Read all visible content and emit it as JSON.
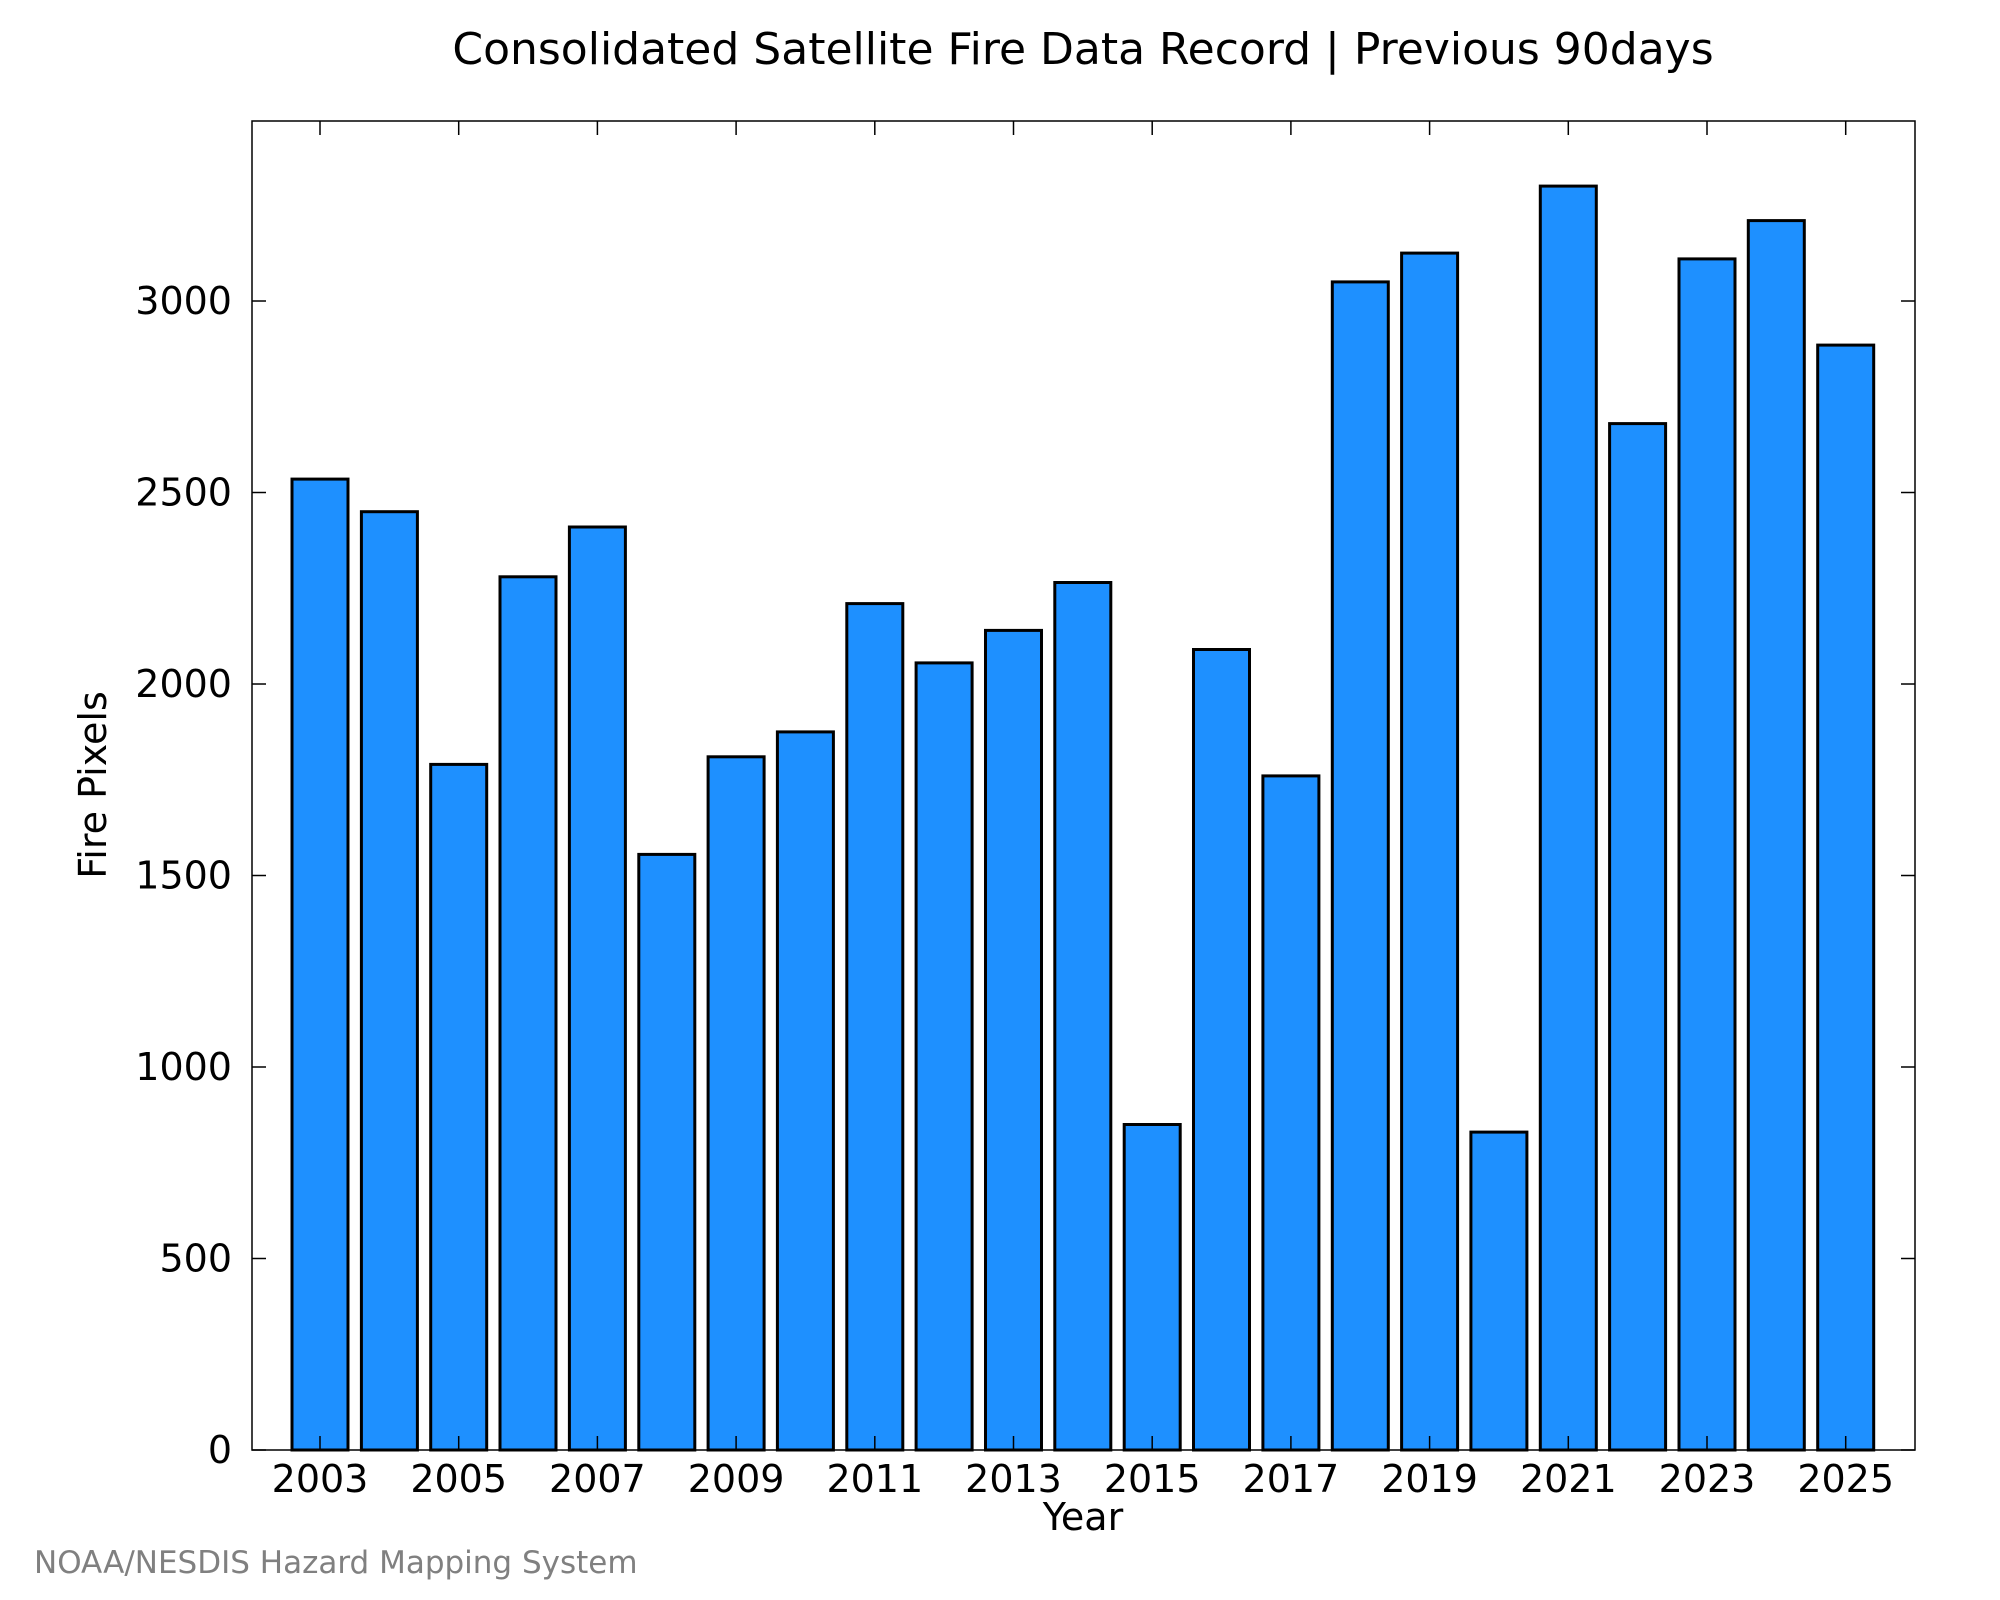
{
  "chart_data": {
    "type": "bar",
    "title": "Consolidated Satellite Fire Data Record | Previous 90days",
    "xlabel": "Year",
    "ylabel": "Fire Pixels",
    "categories": [
      "2003",
      "2004",
      "2005",
      "2006",
      "2007",
      "2008",
      "2009",
      "2010",
      "2011",
      "2012",
      "2013",
      "2014",
      "2015",
      "2016",
      "2017",
      "2018",
      "2019",
      "2020",
      "2021",
      "2022",
      "2023",
      "2024",
      "2025"
    ],
    "values": [
      2535,
      2450,
      1790,
      2280,
      2410,
      1555,
      1810,
      1875,
      2210,
      2055,
      2140,
      2265,
      850,
      2090,
      1760,
      3050,
      3125,
      830,
      3300,
      2680,
      3110,
      3210,
      2885
    ],
    "x_tick_labels": [
      "2003",
      "2005",
      "2007",
      "2009",
      "2011",
      "2013",
      "2015",
      "2017",
      "2019",
      "2021",
      "2023",
      "2025"
    ],
    "y_ticks": [
      0,
      500,
      1000,
      1500,
      2000,
      2500,
      3000
    ],
    "ylim": [
      0,
      3470
    ],
    "grid": false,
    "bar_color": "#1e90ff",
    "edge_color": "#000000"
  },
  "footer": {
    "credit": "NOAA/NESDIS Hazard Mapping System"
  }
}
